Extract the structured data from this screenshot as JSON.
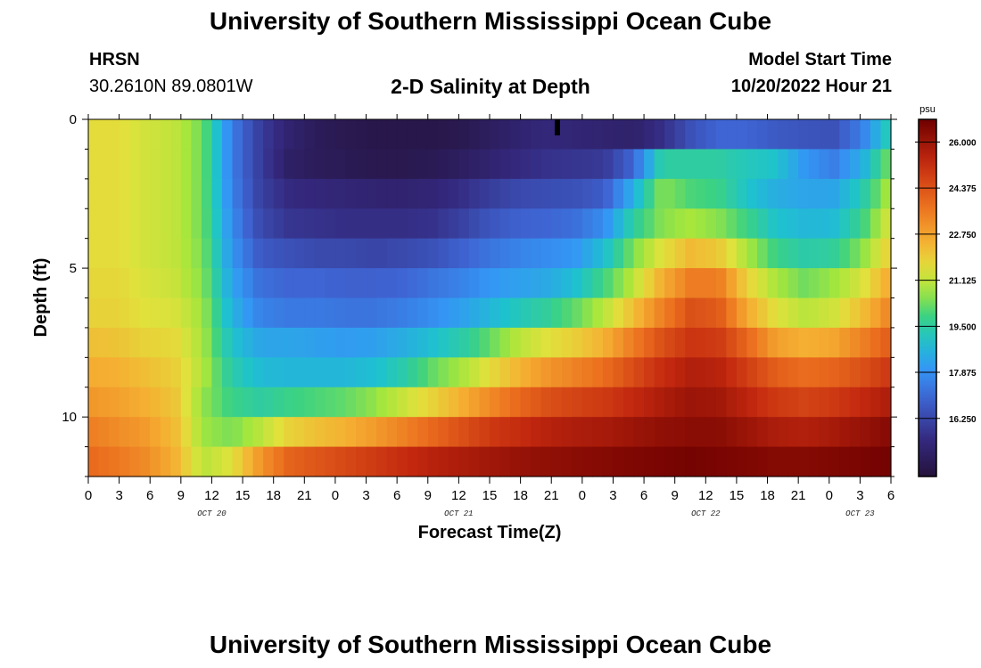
{
  "page": {
    "title": "University of Southern Mississippi Ocean Cube",
    "station": "HRSN",
    "coords": "30.2610N  89.0801W",
    "plot_title": "2-D Salinity at Depth",
    "model_label": "Model Start Time",
    "model_time": "10/20/2022 Hour 21",
    "footer_title": "University of Southern Mississippi Ocean Cube"
  },
  "chart_data": {
    "type": "heatmap",
    "title": "2-D Salinity at Depth",
    "xlabel": "Forecast Time(Z)",
    "ylabel": "Depth (ft)",
    "x_hours": [
      0,
      78
    ],
    "x_tick_labels": [
      "0",
      "3",
      "6",
      "9",
      "12",
      "15",
      "18",
      "21",
      "0",
      "3",
      "6",
      "9",
      "12",
      "15",
      "18",
      "21",
      "0",
      "3",
      "6",
      "9",
      "12",
      "15",
      "18",
      "21",
      "0",
      "3",
      "6"
    ],
    "date_labels": [
      {
        "label": "OCT 20",
        "hour": 12
      },
      {
        "label": "OCT 21",
        "hour": 36
      },
      {
        "label": "OCT 22",
        "hour": 60
      },
      {
        "label": "OCT 23",
        "hour": 75
      }
    ],
    "y_range_ft": [
      0,
      12
    ],
    "y_tick_labels": [
      "0",
      "5",
      "10"
    ],
    "y_tick_values": [
      0,
      5,
      10
    ],
    "colorbar": {
      "unit": "psu",
      "min": 14.2,
      "max": 26.8,
      "tick_labels": [
        "26.000",
        "24.375",
        "22.750",
        "21.125",
        "19.500",
        "17.875",
        "16.250"
      ],
      "tick_values": [
        26.0,
        24.375,
        22.75,
        21.125,
        19.5,
        17.875,
        16.25
      ]
    },
    "depth_levels_ft": [
      0.5,
      1.5,
      2.5,
      3.5,
      4.5,
      5.5,
      6.5,
      7.5,
      8.5,
      9.5,
      10.5,
      11.5
    ],
    "salinity_psu": [
      [
        21.6,
        21.6,
        21.3,
        21.1,
        20.3,
        17.5,
        16.0,
        15.2,
        14.8,
        14.6,
        14.5,
        14.5,
        14.5,
        14.6,
        14.9,
        15.2,
        15.4,
        15.3,
        15.2,
        15.1,
        15.6,
        16.5,
        17.0,
        17.0,
        16.7,
        16.6,
        16.5,
        17.5,
        19.5
      ],
      [
        21.6,
        21.6,
        21.3,
        21.1,
        20.3,
        17.5,
        16.0,
        15.0,
        14.8,
        14.7,
        14.6,
        14.6,
        14.7,
        14.9,
        15.2,
        15.5,
        15.7,
        15.8,
        15.9,
        17.0,
        19.5,
        19.5,
        19.5,
        19.2,
        19.0,
        18.0,
        17.5,
        18.5,
        20.5
      ],
      [
        21.6,
        21.6,
        21.3,
        21.1,
        20.3,
        17.6,
        16.1,
        15.5,
        15.4,
        15.3,
        15.2,
        15.2,
        15.3,
        15.6,
        16.0,
        16.3,
        16.4,
        16.5,
        16.8,
        18.5,
        20.5,
        20.0,
        19.8,
        19.0,
        18.5,
        18.3,
        18.3,
        19.3,
        21.0
      ],
      [
        21.6,
        21.6,
        21.3,
        21.1,
        20.3,
        17.8,
        16.3,
        15.8,
        15.7,
        15.6,
        15.6,
        15.6,
        15.7,
        16.1,
        16.6,
        16.9,
        17.0,
        17.2,
        17.8,
        19.5,
        20.5,
        20.8,
        20.5,
        19.8,
        19.0,
        18.7,
        18.8,
        19.8,
        21.5
      ],
      [
        21.6,
        21.6,
        21.3,
        21.1,
        20.4,
        18.0,
        16.7,
        16.5,
        16.3,
        16.3,
        16.2,
        16.3,
        16.5,
        16.9,
        17.3,
        17.6,
        17.8,
        18.0,
        18.9,
        20.4,
        21.5,
        22.3,
        22.0,
        20.8,
        19.8,
        19.4,
        19.6,
        20.5,
        22.0
      ],
      [
        21.7,
        21.7,
        21.4,
        21.2,
        20.5,
        18.3,
        17.2,
        17.0,
        17.0,
        16.9,
        16.9,
        17.0,
        17.3,
        17.6,
        18.0,
        18.2,
        18.4,
        18.9,
        19.9,
        21.0,
        22.5,
        23.5,
        23.5,
        21.8,
        20.8,
        20.3,
        20.7,
        21.4,
        22.7
      ],
      [
        21.8,
        21.8,
        21.5,
        21.4,
        20.7,
        18.6,
        17.6,
        17.4,
        17.4,
        17.3,
        17.3,
        17.5,
        17.8,
        18.2,
        18.7,
        19.2,
        19.6,
        20.2,
        21.0,
        22.2,
        23.4,
        24.4,
        24.2,
        22.6,
        21.5,
        21.0,
        21.3,
        22.2,
        23.4
      ],
      [
        22.2,
        22.1,
        21.8,
        21.7,
        20.8,
        19.0,
        18.3,
        18.3,
        18.2,
        18.1,
        18.2,
        18.5,
        18.9,
        19.4,
        20.2,
        21.0,
        21.5,
        21.9,
        22.5,
        23.5,
        24.4,
        25.0,
        24.9,
        23.9,
        22.8,
        22.5,
        22.7,
        23.4,
        24.2
      ],
      [
        22.6,
        22.5,
        22.2,
        21.9,
        20.9,
        19.4,
        18.8,
        18.7,
        18.7,
        18.7,
        18.9,
        19.4,
        20.2,
        20.8,
        21.6,
        22.4,
        23.0,
        23.4,
        23.8,
        24.5,
        25.2,
        25.6,
        25.5,
        24.8,
        24.1,
        23.8,
        24.0,
        24.4,
        25.0
      ],
      [
        23.0,
        22.8,
        22.5,
        22.1,
        20.6,
        19.8,
        19.5,
        19.8,
        20.0,
        20.2,
        20.6,
        21.2,
        21.8,
        22.5,
        23.2,
        23.9,
        24.4,
        24.7,
        24.9,
        25.3,
        25.7,
        26.0,
        25.9,
        25.4,
        24.9,
        24.7,
        24.9,
        25.3,
        25.7
      ],
      [
        23.5,
        23.2,
        22.9,
        22.3,
        20.7,
        20.4,
        21.0,
        21.8,
        22.2,
        22.5,
        22.9,
        23.4,
        23.9,
        24.4,
        24.9,
        25.2,
        25.5,
        25.7,
        25.8,
        26.0,
        26.2,
        26.3,
        26.3,
        26.0,
        25.7,
        25.6,
        25.8,
        26.1,
        26.4
      ],
      [
        23.9,
        23.6,
        23.2,
        22.5,
        21.0,
        21.5,
        23.0,
        24.0,
        24.3,
        24.6,
        24.9,
        25.2,
        25.5,
        25.7,
        25.9,
        26.1,
        26.2,
        26.3,
        26.4,
        26.5,
        26.6,
        26.7,
        26.6,
        26.5,
        26.4,
        26.4,
        26.5,
        26.6,
        26.7
      ]
    ],
    "data_hours": [
      0,
      2.79,
      5.57,
      8.36,
      11.14,
      13.93,
      16.71,
      19.5,
      22.29,
      25.07,
      27.86,
      30.64,
      33.43,
      36.21,
      39.0,
      41.79,
      44.57,
      47.36,
      50.14,
      52.93,
      55.71,
      58.5,
      61.29,
      64.07,
      66.86,
      69.64,
      72.43,
      75.21,
      78.0
    ]
  }
}
